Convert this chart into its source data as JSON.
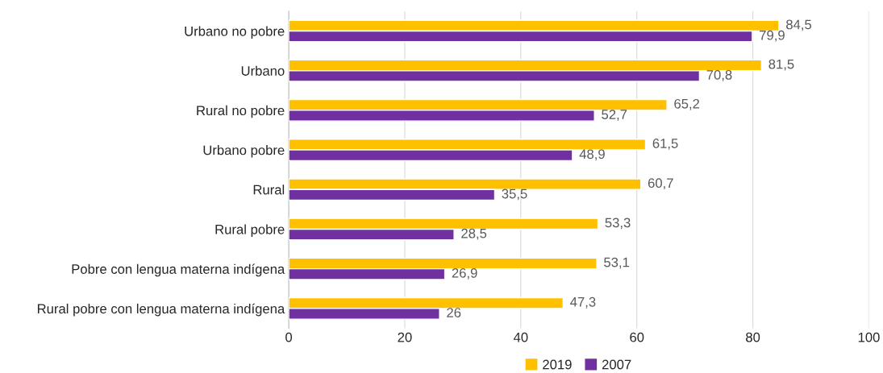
{
  "chart_data": {
    "type": "bar",
    "orientation": "horizontal",
    "categories": [
      "Urbano no pobre",
      "Urbano",
      "Rural no pobre",
      "Urbano pobre",
      "Rural",
      "Rural pobre",
      "Pobre con lengua materna indígena",
      "Rural pobre con lengua materna indígena"
    ],
    "series": [
      {
        "name": "2019",
        "color": "#ffc000",
        "values": [
          84.5,
          81.5,
          65.2,
          61.5,
          60.7,
          53.3,
          53.1,
          47.3
        ],
        "value_labels": [
          "84,5",
          "81,5",
          "65,2",
          "61,5",
          "60,7",
          "53,3",
          "53,1",
          "47,3"
        ]
      },
      {
        "name": "2007",
        "color": "#7030a0",
        "values": [
          79.9,
          70.8,
          52.7,
          48.9,
          35.5,
          28.5,
          26.9,
          26
        ],
        "value_labels": [
          "79,9",
          "70,8",
          "52,7",
          "48,9",
          "35,5",
          "28,5",
          "26,9",
          "26"
        ]
      }
    ],
    "xlim": [
      0,
      100
    ],
    "xticks": [
      0,
      20,
      40,
      60,
      80,
      100
    ],
    "grid": "x",
    "legend": "bottom"
  }
}
